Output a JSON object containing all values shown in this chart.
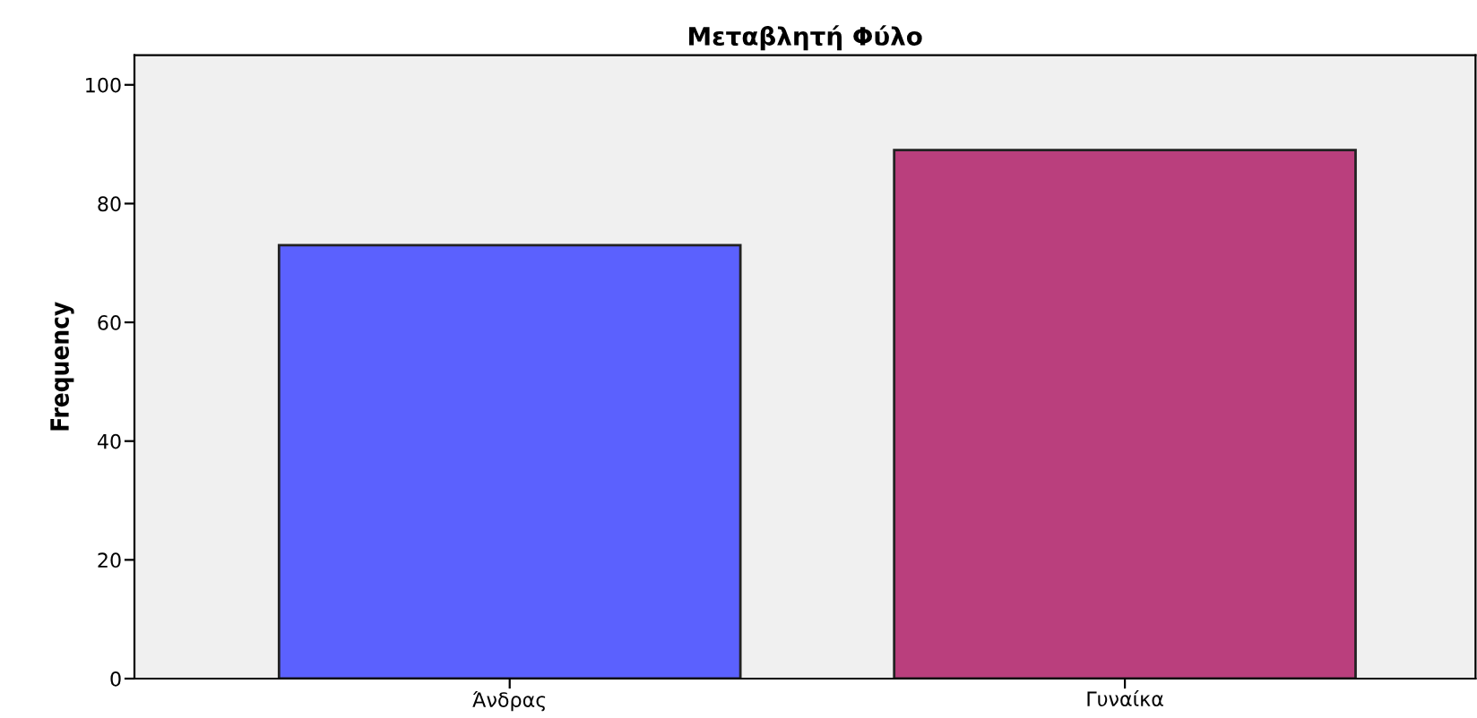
{
  "chart_data": {
    "type": "bar",
    "title": "Μεταβλητή Φύλο",
    "ylabel": "Frequency",
    "categories": [
      "Άνδρας",
      "Γυναίκα"
    ],
    "values": [
      73,
      89
    ],
    "colors": [
      "#5b61fe",
      "#ba3f7d"
    ],
    "ylim": [
      0,
      105
    ],
    "yticks": [
      0,
      20,
      40,
      60,
      80,
      100
    ],
    "grid": false,
    "legend": false
  }
}
